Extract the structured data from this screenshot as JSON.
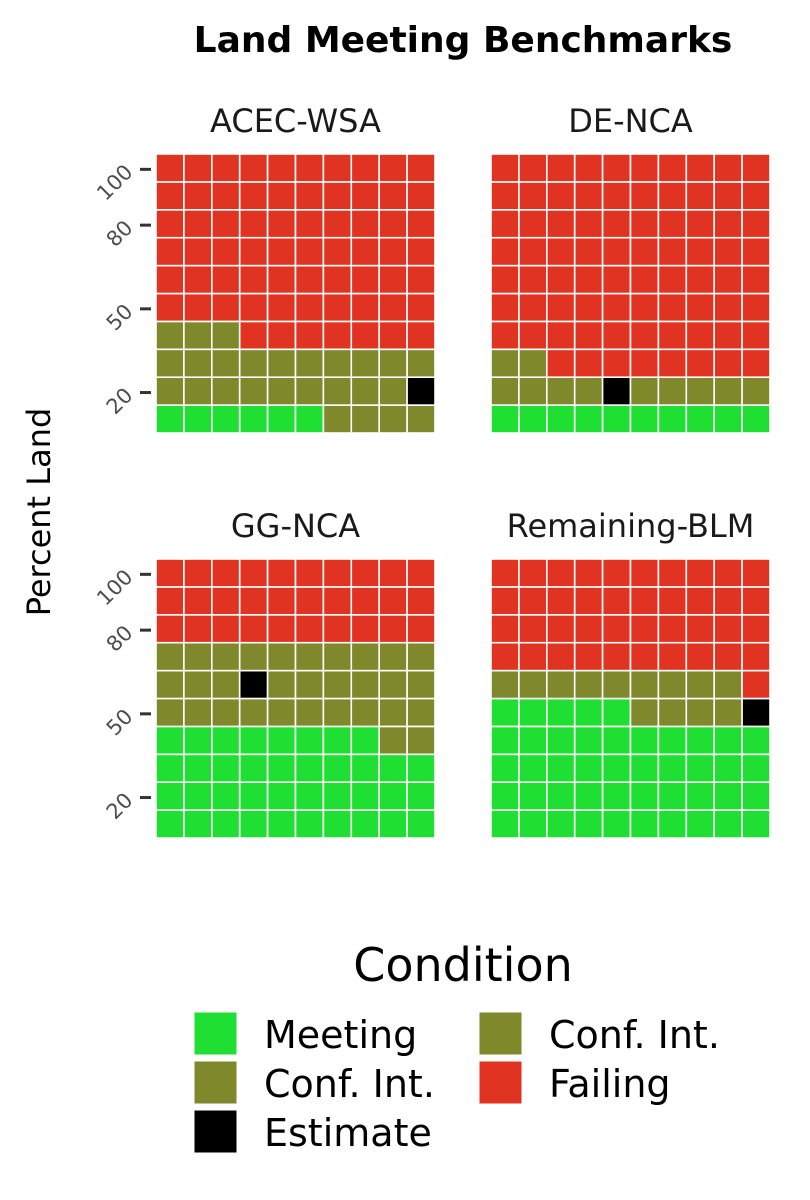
{
  "chart_data": {
    "type": "waffle",
    "title": "Land Meeting Benchmarks",
    "ylabel": "Percent Land",
    "y_ticks": [
      20,
      50,
      80,
      100
    ],
    "grid": false,
    "cells_per_facet": 100,
    "grid_columns": 10,
    "grid_rows": 10,
    "legend_placement": "bottom",
    "legend": {
      "title": "Condition",
      "items": [
        {
          "key": "meeting",
          "label": "Meeting",
          "color": "#1fe032"
        },
        {
          "key": "conf_low",
          "label": "Conf. Int.",
          "color": "#7f892c"
        },
        {
          "key": "estimate",
          "label": "Estimate",
          "color": "#000000"
        },
        {
          "key": "conf_high",
          "label": "Conf. Int.",
          "color": "#7f892c"
        },
        {
          "key": "failing",
          "label": "Failing",
          "color": "#e13321"
        }
      ]
    },
    "facets": [
      {
        "name": "ACEC-WSA",
        "counts": {
          "meeting": 6,
          "conf_low": 13,
          "estimate": 1,
          "conf_high": 13,
          "failing": 67
        }
      },
      {
        "name": "DE-NCA",
        "counts": {
          "meeting": 10,
          "conf_low": 4,
          "estimate": 1,
          "conf_high": 7,
          "failing": 78
        }
      },
      {
        "name": "GG-NCA",
        "counts": {
          "meeting": 38,
          "conf_low": 15,
          "estimate": 1,
          "conf_high": 16,
          "failing": 30
        }
      },
      {
        "name": "Remaining-BLM",
        "counts": {
          "meeting": 45,
          "conf_low": 4,
          "estimate": 1,
          "conf_high": 9,
          "failing": 41
        }
      }
    ]
  }
}
